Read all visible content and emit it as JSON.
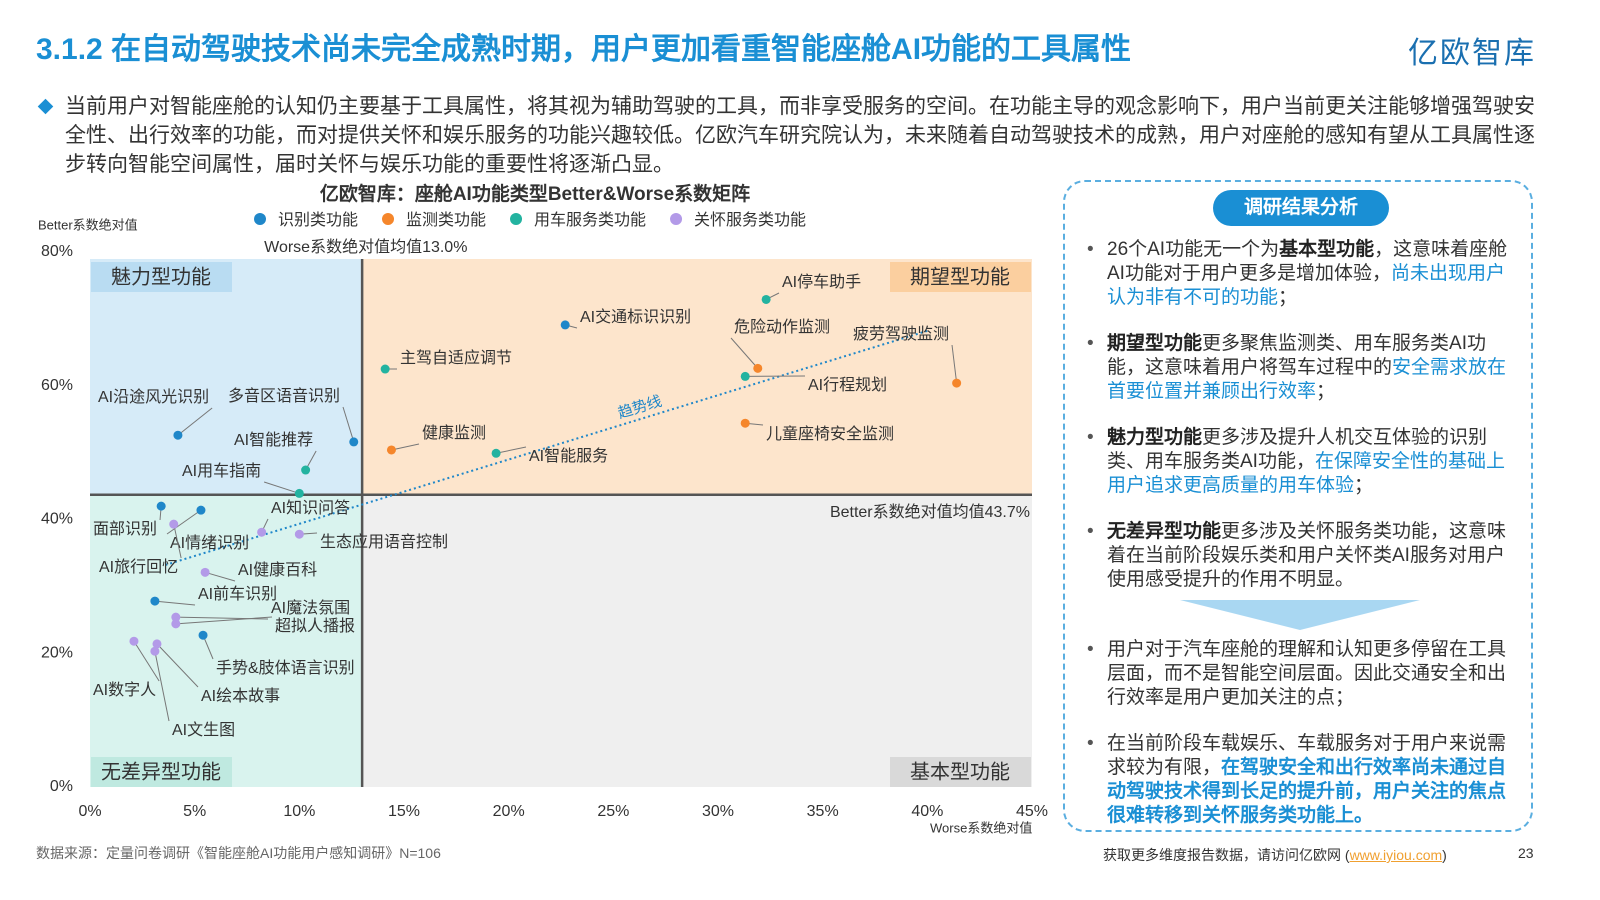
{
  "title": "3.1.2 在自动驾驶技术尚未完全成熟时期，用户更加看重智能座舱AI功能的工具属性",
  "logo": "亿欧智库",
  "intro": "当前用户对智能座舱的认知仍主要基于工具属性，将其视为辅助驾驶的工具，而非享受服务的空间。在功能主导的观念影响下，用户当前更关注能够增强驾驶安全性、出行效率的功能，而对提供关怀和娱乐服务的功能兴趣较低。亿欧汽车研究院认为，未来随着自动驾驶技术的成熟，用户对座舱的感知有望从工具属性逐步转向智能空间属性，届时关怀与娱乐功能的重要性将逐渐凸显。",
  "chart_data": {
    "type": "scatter",
    "title": "亿欧智库：座舱AI功能类型Better&Worse系数矩阵",
    "y_label": "Better系数绝对值",
    "x_label": "Worse系数绝对值",
    "xlim": [
      0,
      45
    ],
    "ylim": [
      0,
      80
    ],
    "xticks": [
      {
        "value": 0,
        "label": "0%"
      },
      {
        "value": 5,
        "label": "5%"
      },
      {
        "value": 10,
        "label": "10%"
      },
      {
        "value": 15,
        "label": "15%"
      },
      {
        "value": 20,
        "label": "20%"
      },
      {
        "value": 25,
        "label": "25%"
      },
      {
        "value": 30,
        "label": "30%"
      },
      {
        "value": 35,
        "label": "35%"
      },
      {
        "value": 40,
        "label": "40%"
      },
      {
        "value": 45,
        "label": "45%"
      }
    ],
    "yticks": [
      {
        "value": 0,
        "label": "0%"
      },
      {
        "value": 20,
        "label": "20%"
      },
      {
        "value": 40,
        "label": "40%"
      },
      {
        "value": 60,
        "label": "60%"
      },
      {
        "value": 80,
        "label": "80%"
      }
    ],
    "worse_mean": {
      "value": 13.0,
      "label": "Worse系数绝对值均值13.0%"
    },
    "better_mean": {
      "value": 43.7,
      "label": "Better系数绝对值均值43.7%"
    },
    "quadrants": {
      "top_left": "魅力型功能",
      "top_right": "期望型功能",
      "bottom_left": "无差异型功能",
      "bottom_right": "基本型功能"
    },
    "trendline": {
      "label": "趋势线",
      "x": [
        3.6,
        40.1
      ],
      "y": [
        33.2,
        68.3
      ]
    },
    "series": [
      {
        "name": "识别类功能",
        "color": "#1f87c9",
        "labels": [
          "AI交通标识识别",
          "AI沿途风光识别",
          "多音区语音识别",
          "面部识别",
          "AI情绪识别",
          "AI前车识别",
          "手势&肢体语言识别"
        ],
        "x": [
          22.7,
          4.2,
          12.6,
          3.4,
          5.3,
          3.1,
          5.4
        ],
        "values": [
          69.1,
          52.6,
          51.6,
          42.0,
          41.4,
          27.8,
          22.7
        ]
      },
      {
        "name": "监测类功能",
        "color": "#f5862b",
        "labels": [
          "危险动作监测",
          "疲劳驾驶监测",
          "健康监测",
          "儿童座椅安全监测"
        ],
        "x": [
          31.9,
          41.4,
          14.4,
          31.3
        ],
        "values": [
          62.6,
          60.4,
          50.4,
          54.4
        ]
      },
      {
        "name": "用车服务类功能",
        "color": "#23b3a0",
        "labels": [
          "AI停车助手",
          "主驾自适应调节",
          "AI行程规划",
          "AI智能服务",
          "AI智能推荐",
          "AI用车指南"
        ],
        "x": [
          32.3,
          14.1,
          31.3,
          19.4,
          10.3,
          10.0
        ],
        "values": [
          72.9,
          62.5,
          61.4,
          49.9,
          47.4,
          43.9
        ]
      },
      {
        "name": "关怀服务类功能",
        "color": "#b39ae8",
        "labels": [
          "AI旅行回忆",
          "AI知识问答",
          "生态应用语音控制",
          "AI健康百科",
          "AI魔法氛围",
          "超拟人播报",
          "AI数字人",
          "AI绘本故事",
          "AI文生图"
        ],
        "x": [
          4.0,
          8.2,
          10.0,
          5.5,
          4.1,
          4.1,
          2.1,
          3.2,
          3.1
        ],
        "values": [
          39.3,
          38.1,
          37.8,
          32.1,
          25.4,
          24.4,
          21.8,
          21.4,
          20.3
        ]
      }
    ]
  },
  "sidebar": {
    "heading": "调研结果分析",
    "findings": [
      [
        {
          "text": "26个AI功能无一个为",
          "style": "normal"
        },
        {
          "text": "基本型功能",
          "style": "bold"
        },
        {
          "text": "，这意味着座舱AI功能对于用户更多是增加体验，",
          "style": "normal"
        },
        {
          "text": "尚未出现用户认为非有不可的功能",
          "style": "link"
        },
        {
          "text": "；",
          "style": "normal"
        }
      ],
      [
        {
          "text": "期望型功能",
          "style": "bold"
        },
        {
          "text": "更多聚焦监测类、用车服务类AI功能，这意味着用户将驾车过程中的",
          "style": "normal"
        },
        {
          "text": "安全需求放在首要位置并兼顾出行效率",
          "style": "link"
        },
        {
          "text": "；",
          "style": "normal"
        }
      ],
      [
        {
          "text": "魅力型功能",
          "style": "bold"
        },
        {
          "text": "更多涉及提升人机交互体验的识别类、用车服务类AI功能，",
          "style": "normal"
        },
        {
          "text": "在保障安全性的基础上用户追求更高质量的用车体验",
          "style": "link"
        },
        {
          "text": "；",
          "style": "normal"
        }
      ],
      [
        {
          "text": "无差异型功能",
          "style": "bold"
        },
        {
          "text": "更多涉及关怀服务类功能，这意味着在当前阶段娱乐类和用户关怀类AI服务对用户使用感受提升的作用不明显。",
          "style": "normal"
        }
      ]
    ],
    "conclusions": [
      [
        {
          "text": "用户对于汽车座舱的理解和认知更多停留在工具层面，而不是智能空间层面。因此交通安全和出行效率是用户更加关注的点；",
          "style": "normal"
        }
      ],
      [
        {
          "text": "在当前阶段车载娱乐、车载服务对于用户来说需求较为有限，",
          "style": "normal"
        },
        {
          "text": "在驾驶安全和出行效率尚未通过自动驾驶技术得到长足的提升前，用户关注的焦点很难转移到关怀服务类功能上。",
          "style": "emphasis"
        }
      ]
    ]
  },
  "footer": {
    "source": "数据来源：定量问卷调研《智能座舱AI功能用户感知调研》N=106",
    "more": [
      {
        "text": "获取更多维度报告数据，请访问亿欧网 (",
        "style": "normal"
      },
      {
        "text": "www.iyiou.com",
        "style": "url"
      },
      {
        "text": ")",
        "style": "normal"
      }
    ],
    "page": "23"
  }
}
